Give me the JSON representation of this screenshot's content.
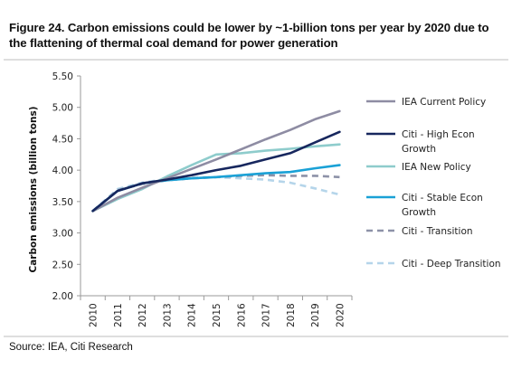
{
  "figure": {
    "title": "Figure 24. Carbon emissions could be lower by ~1-billion tons per year by 2020 due to the flattening of thermal coal demand for power generation",
    "source": "Source: IEA, Citi Research"
  },
  "chart_data": {
    "type": "line",
    "title": "Figure 24. Carbon emissions could be lower by ~1-billion tons per year by 2020 due to the flattening of thermal coal demand for power generation",
    "xlabel": "",
    "ylabel": "Carbon emissions (billion tons)",
    "ylim": [
      2.0,
      5.5
    ],
    "y_ticks": [
      "2.00",
      "2.50",
      "3.00",
      "3.50",
      "4.00",
      "4.50",
      "5.00",
      "5.50"
    ],
    "categories": [
      "2010",
      "2011",
      "2012",
      "2013",
      "2014",
      "2015",
      "2016",
      "2017",
      "2018",
      "2019",
      "2020"
    ],
    "grid": false,
    "legend_position": "right",
    "series": [
      {
        "name": "IEA Current Policy",
        "color": "#8e8ca3",
        "dash": "solid",
        "values": [
          3.35,
          3.56,
          3.72,
          3.87,
          4.02,
          4.17,
          4.33,
          4.49,
          4.64,
          4.81,
          4.94
        ]
      },
      {
        "name": "Citi - High Econ Growth",
        "color": "#17275e",
        "dash": "solid",
        "values": [
          3.35,
          3.67,
          3.79,
          3.85,
          3.92,
          4.0,
          4.07,
          4.17,
          4.27,
          4.44,
          4.61
        ]
      },
      {
        "name": "IEA New Policy",
        "color": "#8ecccc",
        "dash": "solid",
        "values": [
          3.35,
          3.54,
          3.7,
          3.9,
          4.08,
          4.25,
          4.27,
          4.31,
          4.34,
          4.38,
          4.41
        ]
      },
      {
        "name": "Citi - Stable Econ Growth",
        "color": "#1aa1d6",
        "dash": "solid",
        "values": [
          3.35,
          3.67,
          3.79,
          3.84,
          3.87,
          3.89,
          3.92,
          3.95,
          3.97,
          4.03,
          4.08
        ]
      },
      {
        "name": "Citi - Transition",
        "color": "#8d92a8",
        "dash": "dashed",
        "values": [
          3.35,
          3.68,
          3.78,
          3.84,
          3.87,
          3.89,
          3.91,
          3.92,
          3.91,
          3.91,
          3.89
        ]
      },
      {
        "name": "Citi - Deep Transition",
        "color": "#b5d5ea",
        "dash": "dashed",
        "values": [
          3.35,
          3.7,
          3.8,
          3.86,
          3.88,
          3.89,
          3.87,
          3.85,
          3.8,
          3.71,
          3.61
        ]
      }
    ]
  }
}
